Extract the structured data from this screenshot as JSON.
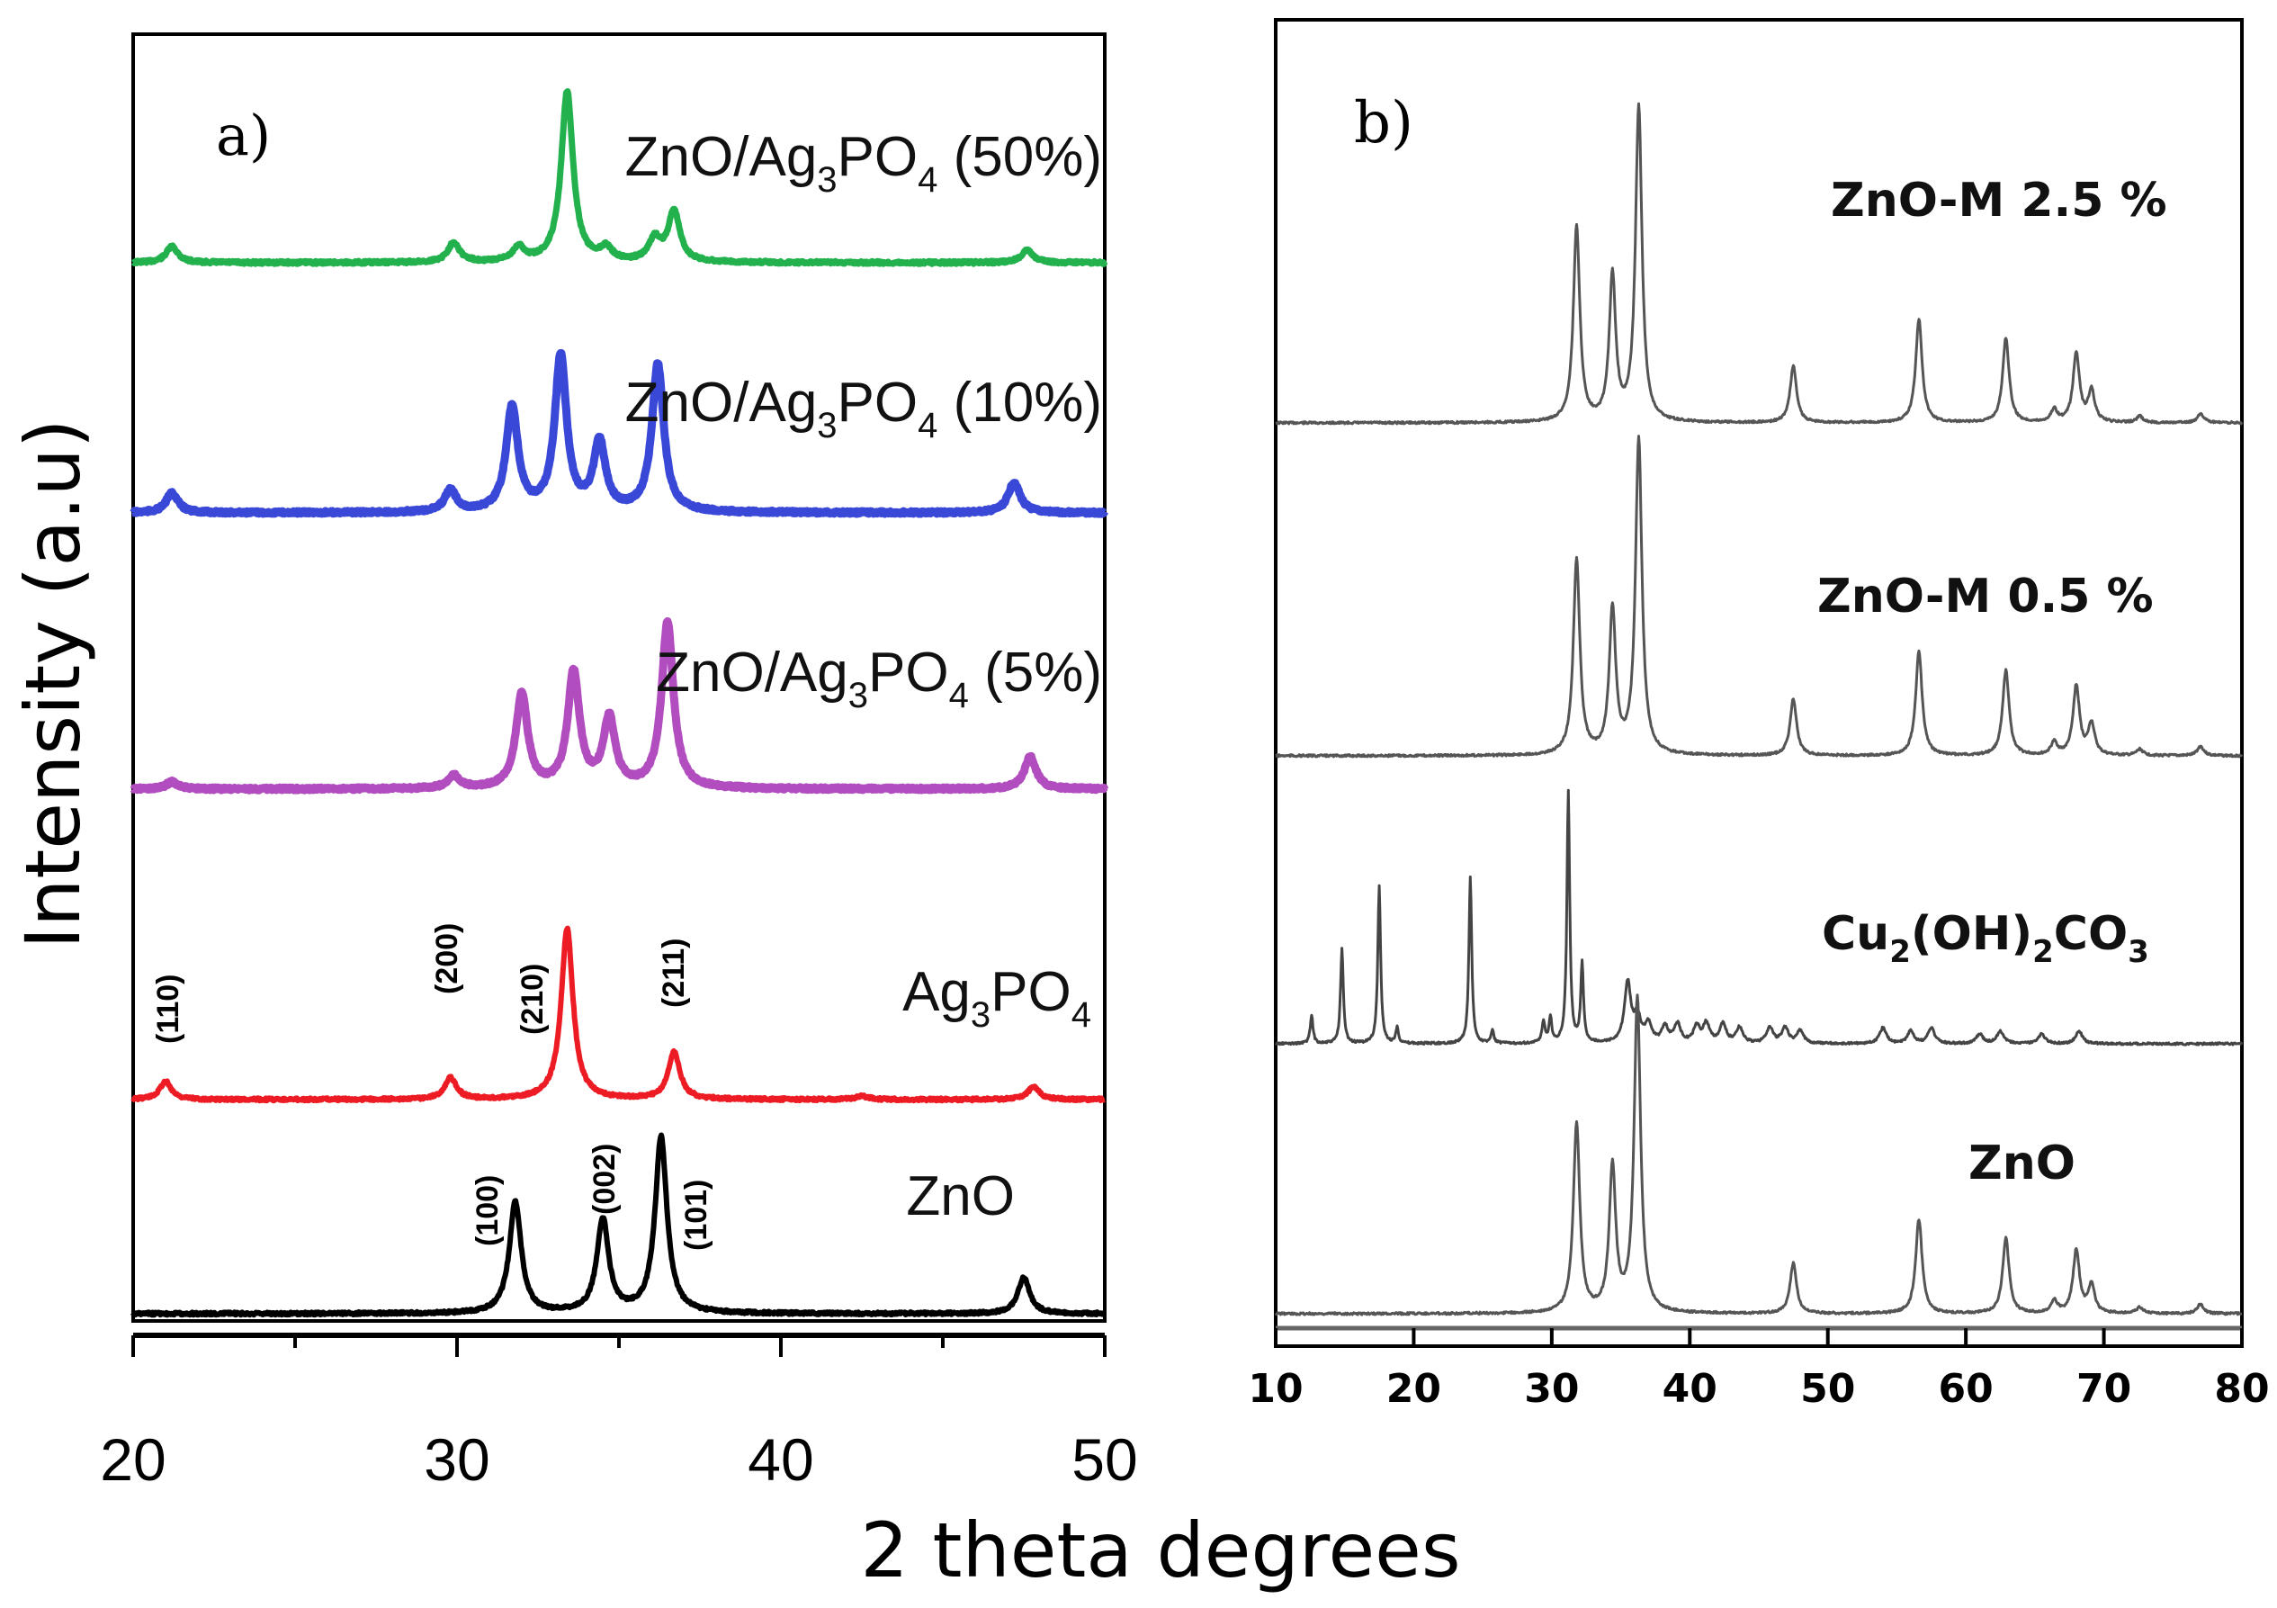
{
  "figure": {
    "ylabel": "Intensity (a.u)",
    "xlabel": "2 theta degrees"
  },
  "chart_data": [
    {
      "id": "a",
      "type": "line",
      "panel_label": "a)",
      "xlim": [
        20,
        50
      ],
      "xticks": [
        20,
        30,
        40,
        50
      ],
      "xtick_labels": [
        "20",
        "30",
        "40",
        "50"
      ],
      "series": [
        {
          "name_main": "ZnO/Ag",
          "name_sub1": "3",
          "name_mid": "PO",
          "name_sub2": "4",
          "name_tail": " (50%)",
          "color": "#22b14c",
          "peaks": [
            [
              21.2,
              0.09
            ],
            [
              29.9,
              0.11
            ],
            [
              31.9,
              0.08
            ],
            [
              33.4,
              0.95
            ],
            [
              34.6,
              0.07
            ],
            [
              36.1,
              0.12
            ],
            [
              36.7,
              0.28
            ],
            [
              47.6,
              0.07
            ]
          ]
        },
        {
          "name_main": "ZnO/Ag",
          "name_sub1": "3",
          "name_mid": "PO",
          "name_sub2": "4",
          "name_tail": " (10%)",
          "color": "#3a48d8",
          "peaks": [
            [
              21.2,
              0.11
            ],
            [
              29.8,
              0.12
            ],
            [
              31.7,
              0.58
            ],
            [
              33.2,
              0.86
            ],
            [
              34.4,
              0.38
            ],
            [
              36.2,
              0.82
            ],
            [
              47.2,
              0.17
            ]
          ]
        },
        {
          "name_main": "ZnO/Ag",
          "name_sub1": "3",
          "name_mid": "PO",
          "name_sub2": "4",
          "name_tail": " (5%)",
          "color": "#b14dbf",
          "peaks": [
            [
              21.2,
              0.04
            ],
            [
              29.9,
              0.07
            ],
            [
              32.0,
              0.52
            ],
            [
              33.6,
              0.64
            ],
            [
              34.7,
              0.38
            ],
            [
              36.5,
              0.92
            ],
            [
              47.7,
              0.18
            ]
          ]
        },
        {
          "name_main": "Ag",
          "name_sub1": "3",
          "name_mid": "PO",
          "name_sub2": "4",
          "name_tail": "",
          "color": "#ed1c24",
          "peaks": [
            [
              21.0,
              0.1
            ],
            [
              29.8,
              0.12
            ],
            [
              33.4,
              0.95
            ],
            [
              36.7,
              0.26
            ],
            [
              42.5,
              0.02
            ],
            [
              47.8,
              0.07
            ]
          ],
          "annotations": [
            "(110)",
            "(200)",
            "(210)",
            "(211)"
          ]
        },
        {
          "name_main": "ZnO",
          "name_sub1": "",
          "name_mid": "",
          "name_sub2": "",
          "name_tail": "",
          "color": "#000000",
          "peaks": [
            [
              31.8,
              0.62
            ],
            [
              34.5,
              0.52
            ],
            [
              36.3,
              0.98
            ],
            [
              47.5,
              0.2
            ]
          ],
          "annotations": [
            "(100)",
            "(002)",
            "(101)"
          ]
        }
      ]
    },
    {
      "id": "b",
      "type": "line",
      "panel_label": "b)",
      "xlim": [
        10,
        80
      ],
      "xticks": [
        10,
        20,
        30,
        40,
        50,
        60,
        70,
        80
      ],
      "xtick_labels": [
        "10",
        "20",
        "30",
        "40",
        "50",
        "60",
        "70",
        "80"
      ],
      "series": [
        {
          "name_main": "ZnO-M 2.5 %",
          "name_parts": null,
          "color": "#555555",
          "peaks": [
            [
              31.8,
              0.62
            ],
            [
              34.4,
              0.46
            ],
            [
              36.3,
              1.0
            ],
            [
              47.5,
              0.18
            ],
            [
              56.6,
              0.33
            ],
            [
              62.9,
              0.27
            ],
            [
              66.4,
              0.04
            ],
            [
              68.0,
              0.22
            ],
            [
              69.1,
              0.1
            ],
            [
              72.6,
              0.02
            ],
            [
              77.0,
              0.03
            ]
          ]
        },
        {
          "name_main": "ZnO-M 0.5 %",
          "name_parts": null,
          "color": "#555555",
          "peaks": [
            [
              31.8,
              0.62
            ],
            [
              34.4,
              0.46
            ],
            [
              36.3,
              1.0
            ],
            [
              47.5,
              0.18
            ],
            [
              56.6,
              0.33
            ],
            [
              62.9,
              0.27
            ],
            [
              66.4,
              0.04
            ],
            [
              68.0,
              0.22
            ],
            [
              69.1,
              0.1
            ],
            [
              72.6,
              0.02
            ],
            [
              77.0,
              0.03
            ]
          ]
        },
        {
          "name_main": "Cu",
          "name_sub1": "2",
          "name_mid": "(OH)",
          "name_sub2": "2",
          "name_tail": "CO",
          "name_sub3": "3",
          "color": "#444444",
          "peaks": [
            [
              12.6,
              0.09
            ],
            [
              14.8,
              0.3
            ],
            [
              17.5,
              0.5
            ],
            [
              18.8,
              0.05
            ],
            [
              24.1,
              0.53
            ],
            [
              25.7,
              0.04
            ],
            [
              29.4,
              0.07
            ],
            [
              29.9,
              0.08
            ],
            [
              31.2,
              0.8
            ],
            [
              32.2,
              0.25
            ],
            [
              35.5,
              0.19
            ],
            [
              36.2,
              0.08
            ],
            [
              37.0,
              0.06
            ],
            [
              38.2,
              0.05
            ],
            [
              39.1,
              0.06
            ],
            [
              40.5,
              0.05
            ],
            [
              41.2,
              0.06
            ],
            [
              42.4,
              0.06
            ],
            [
              43.6,
              0.05
            ],
            [
              45.8,
              0.05
            ],
            [
              46.9,
              0.05
            ],
            [
              48.0,
              0.04
            ],
            [
              54.0,
              0.05
            ],
            [
              56.0,
              0.04
            ],
            [
              57.5,
              0.05
            ],
            [
              61.0,
              0.03
            ],
            [
              62.5,
              0.04
            ],
            [
              65.5,
              0.03
            ],
            [
              68.2,
              0.04
            ]
          ]
        },
        {
          "name_main": "ZnO",
          "name_parts": null,
          "color": "#555555",
          "peaks": [
            [
              31.8,
              0.6
            ],
            [
              34.4,
              0.46
            ],
            [
              36.2,
              1.0
            ],
            [
              47.5,
              0.16
            ],
            [
              56.6,
              0.3
            ],
            [
              62.9,
              0.24
            ],
            [
              66.4,
              0.04
            ],
            [
              68.0,
              0.2
            ],
            [
              69.1,
              0.09
            ],
            [
              72.6,
              0.02
            ],
            [
              77.0,
              0.03
            ]
          ]
        }
      ]
    }
  ]
}
